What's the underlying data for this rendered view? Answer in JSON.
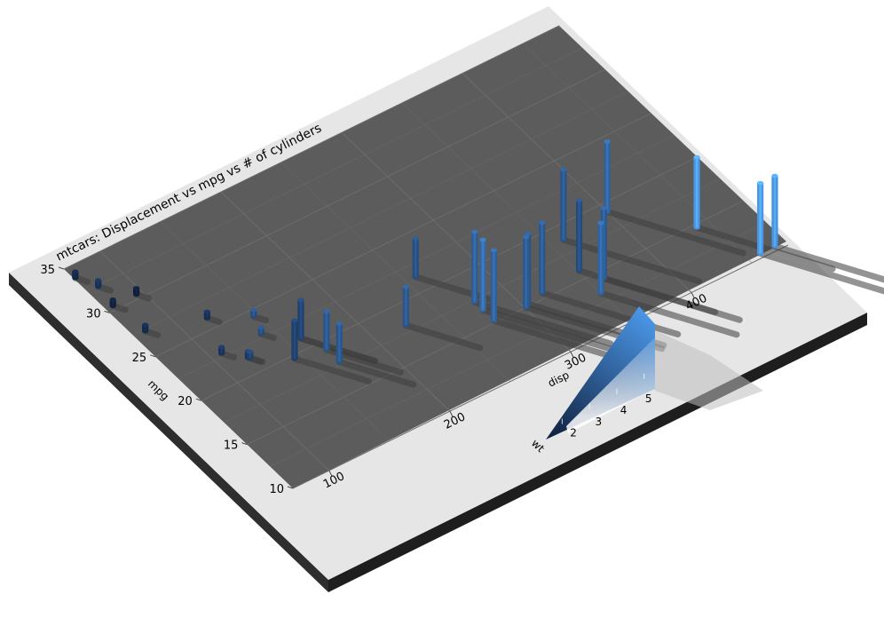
{
  "chart_data": {
    "type": "3d-bar",
    "title": "mtcars: Displacement vs mpg vs # of cylinders",
    "xlabel": "disp",
    "ylabel": "mpg",
    "x_ticks": [
      100,
      200,
      300,
      400
    ],
    "y_ticks": [
      10,
      15,
      20,
      25,
      30,
      35
    ],
    "xlim": [
      70,
      480
    ],
    "ylim": [
      10,
      35
    ],
    "legend": {
      "title": "wt",
      "ticks": [
        2,
        3,
        4,
        5
      ],
      "range": [
        1.5,
        5.4
      ],
      "color_low": "#0f1e3a",
      "color_high": "#4a96e6"
    },
    "colors": {
      "panel": "#5c5c5c",
      "frame": "#e6e6e6",
      "frame_edge": "#2e2e2e",
      "grid": "#6c6c6c"
    },
    "points": [
      {
        "disp": 71.1,
        "mpg": 33.9,
        "cyl": 4,
        "wt": 1.835
      },
      {
        "disp": 75.7,
        "mpg": 30.4,
        "cyl": 4,
        "wt": 1.615
      },
      {
        "disp": 78.7,
        "mpg": 32.4,
        "cyl": 4,
        "wt": 2.2
      },
      {
        "disp": 79.0,
        "mpg": 27.3,
        "cyl": 4,
        "wt": 1.935
      },
      {
        "disp": 95.1,
        "mpg": 30.4,
        "cyl": 4,
        "wt": 1.513
      },
      {
        "disp": 108.0,
        "mpg": 22.8,
        "cyl": 4,
        "wt": 2.32
      },
      {
        "disp": 120.1,
        "mpg": 21.5,
        "cyl": 4,
        "wt": 2.465
      },
      {
        "disp": 120.3,
        "mpg": 26.0,
        "cyl": 4,
        "wt": 2.14
      },
      {
        "disp": 121.0,
        "mpg": 21.4,
        "cyl": 4,
        "wt": 2.78
      },
      {
        "disp": 140.8,
        "mpg": 22.8,
        "cyl": 4,
        "wt": 3.15
      },
      {
        "disp": 146.7,
        "mpg": 24.4,
        "cyl": 4,
        "wt": 3.19
      },
      {
        "disp": 145.0,
        "mpg": 19.7,
        "cyl": 6,
        "wt": 2.77
      },
      {
        "disp": 160.0,
        "mpg": 21.0,
        "cyl": 6,
        "wt": 2.62
      },
      {
        "disp": 160.0,
        "mpg": 21.0,
        "cyl": 6,
        "wt": 2.875
      },
      {
        "disp": 167.6,
        "mpg": 19.2,
        "cyl": 6,
        "wt": 3.44
      },
      {
        "disp": 167.6,
        "mpg": 17.8,
        "cyl": 6,
        "wt": 3.44
      },
      {
        "disp": 225.0,
        "mpg": 18.1,
        "cyl": 6,
        "wt": 3.46
      },
      {
        "disp": 258.0,
        "mpg": 21.4,
        "cyl": 6,
        "wt": 3.215
      },
      {
        "disp": 275.8,
        "mpg": 16.4,
        "cyl": 8,
        "wt": 4.07
      },
      {
        "disp": 275.8,
        "mpg": 17.3,
        "cyl": 8,
        "wt": 3.73
      },
      {
        "disp": 275.8,
        "mpg": 15.2,
        "cyl": 8,
        "wt": 3.78
      },
      {
        "disp": 301.0,
        "mpg": 15.0,
        "cyl": 8,
        "wt": 3.57
      },
      {
        "disp": 304.0,
        "mpg": 15.2,
        "cyl": 8,
        "wt": 3.435
      },
      {
        "disp": 318.0,
        "mpg": 15.5,
        "cyl": 8,
        "wt": 3.52
      },
      {
        "disp": 350.0,
        "mpg": 13.3,
        "cyl": 8,
        "wt": 3.84
      },
      {
        "disp": 351.0,
        "mpg": 15.8,
        "cyl": 8,
        "wt": 3.17
      },
      {
        "disp": 360.0,
        "mpg": 18.7,
        "cyl": 8,
        "wt": 3.44
      },
      {
        "disp": 360.0,
        "mpg": 14.3,
        "cyl": 8,
        "wt": 3.57
      },
      {
        "disp": 400.0,
        "mpg": 19.2,
        "cyl": 8,
        "wt": 3.845
      },
      {
        "disp": 440.0,
        "mpg": 14.7,
        "cyl": 8,
        "wt": 5.345
      },
      {
        "disp": 460.0,
        "mpg": 10.4,
        "cyl": 8,
        "wt": 5.424
      },
      {
        "disp": 472.0,
        "mpg": 10.4,
        "cyl": 8,
        "wt": 5.25
      }
    ]
  }
}
